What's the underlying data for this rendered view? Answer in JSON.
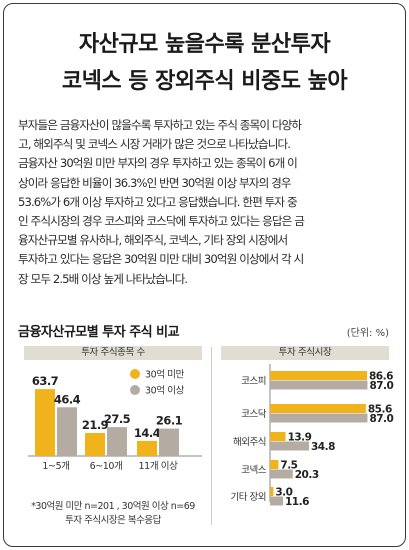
{
  "headline": {
    "line1": "자산규모 높을수록 분산투자",
    "line2": "코넥스 등 장외주식 비중도 높아"
  },
  "body_lines": [
    "부자들은 금융자산이 많을수록 투자하고 있는 주식 종목이 다양하",
    "고, 해외주식 및 코넥스 시장 거래가 많은 것으로 나타났습니다.",
    "금융자산 30억원 미만 부자의 경우 투자하고 있는 종목이 6개 이",
    "상이라 응답한 비율이 36.3%인 반면 30억원 이상 부자의 경우",
    "53.6%가 6개 이상 투자하고 있다고 응답했습니다. 한편 투자 중",
    "인 주식시장의 경우 코스피와 코스닥에 투자하고 있다는 응답은 금",
    "융자산규모별 유사하나, 해외주식, 코넥스, 기타 장외 시장에서",
    "투자하고 있다는 응답은 30억원 미만 대비 30억원 이상에서 각 시",
    "장 모두 2.5배 이상 높게 나타났습니다."
  ],
  "section": {
    "title": "금융자산규모별 투자 주식 비교",
    "unit": "(단위: %)"
  },
  "notes": {
    "line1": "*30억원 미만 n=201 , 30억원 이상 n=69",
    "line2": "투자 주식시장은 복수응답"
  },
  "colors": {
    "under_30": "#f1b31c",
    "over_30": "#b4aca2",
    "panel_header": "#e2ddd3"
  },
  "chart_data": [
    {
      "type": "bar",
      "title": "투자 주식종목 수",
      "categories": [
        "1~5개",
        "6~10개",
        "11개 이상"
      ],
      "series": [
        {
          "name": "30억 미만",
          "values": [
            63.7,
            21.9,
            14.4
          ]
        },
        {
          "name": "30억 이상",
          "values": [
            46.4,
            27.5,
            26.1
          ]
        }
      ],
      "ylim": [
        0,
        70
      ],
      "legend": "top-right",
      "grid": false
    },
    {
      "type": "bar",
      "orientation": "horizontal",
      "title": "투자 주식시장",
      "categories": [
        "코스피",
        "코스닥",
        "해외주식",
        "코넥스",
        "기타 장외"
      ],
      "series": [
        {
          "name": "30억 미만",
          "values": [
            86.6,
            85.6,
            13.9,
            7.5,
            3.0
          ]
        },
        {
          "name": "30억 이상",
          "values": [
            87.0,
            87.0,
            34.8,
            20.3,
            11.6
          ]
        }
      ],
      "xlim": [
        0,
        100
      ],
      "grid": false
    }
  ]
}
